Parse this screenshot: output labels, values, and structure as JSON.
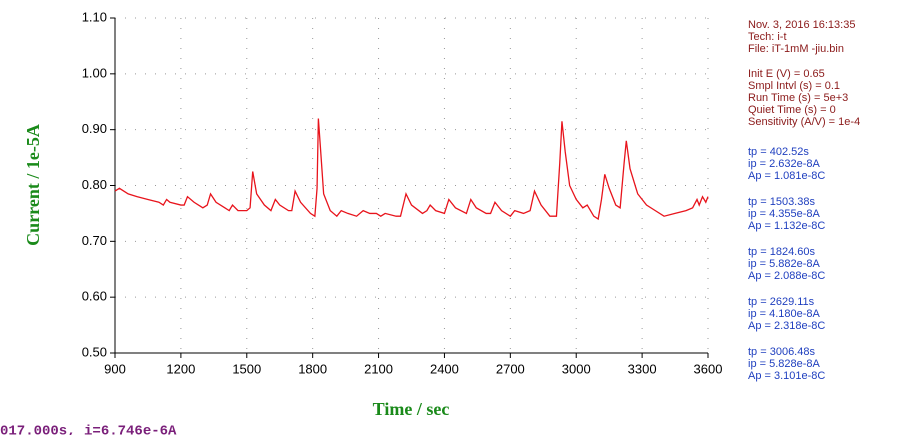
{
  "chart_data": {
    "type": "line",
    "xlabel": "Time / sec",
    "ylabel": "Current / 1e-5A",
    "x": [
      900,
      920,
      960,
      1000,
      1050,
      1100,
      1120,
      1135,
      1150,
      1200,
      1215,
      1230,
      1260,
      1300,
      1320,
      1335,
      1360,
      1400,
      1420,
      1435,
      1460,
      1500,
      1515,
      1527,
      1545,
      1580,
      1610,
      1630,
      1650,
      1690,
      1705,
      1720,
      1745,
      1790,
      1810,
      1820,
      1826,
      1835,
      1850,
      1880,
      1910,
      1930,
      1960,
      2000,
      2030,
      2060,
      2090,
      2110,
      2130,
      2180,
      2200,
      2225,
      2250,
      2300,
      2320,
      2335,
      2360,
      2400,
      2420,
      2450,
      2500,
      2520,
      2545,
      2590,
      2610,
      2630,
      2660,
      2700,
      2720,
      2760,
      2790,
      2810,
      2840,
      2880,
      2910,
      2925,
      2935,
      2950,
      2970,
      3000,
      3030,
      3050,
      3080,
      3100,
      3115,
      3130,
      3150,
      3180,
      3200,
      3218,
      3228,
      3245,
      3280,
      3320,
      3360,
      3400,
      3450,
      3500,
      3530,
      3550,
      3560,
      3575,
      3590,
      3600
    ],
    "values": [
      0.79,
      0.795,
      0.785,
      0.78,
      0.775,
      0.77,
      0.765,
      0.775,
      0.77,
      0.765,
      0.765,
      0.78,
      0.77,
      0.76,
      0.765,
      0.785,
      0.77,
      0.76,
      0.755,
      0.765,
      0.755,
      0.755,
      0.76,
      0.825,
      0.785,
      0.765,
      0.755,
      0.775,
      0.765,
      0.755,
      0.755,
      0.79,
      0.77,
      0.75,
      0.745,
      0.795,
      0.92,
      0.87,
      0.785,
      0.755,
      0.745,
      0.755,
      0.75,
      0.745,
      0.755,
      0.75,
      0.75,
      0.745,
      0.75,
      0.745,
      0.745,
      0.785,
      0.765,
      0.75,
      0.755,
      0.765,
      0.755,
      0.75,
      0.775,
      0.76,
      0.75,
      0.775,
      0.76,
      0.75,
      0.75,
      0.77,
      0.755,
      0.745,
      0.755,
      0.75,
      0.755,
      0.79,
      0.765,
      0.745,
      0.745,
      0.84,
      0.915,
      0.86,
      0.8,
      0.775,
      0.76,
      0.765,
      0.745,
      0.74,
      0.775,
      0.82,
      0.795,
      0.765,
      0.76,
      0.84,
      0.88,
      0.83,
      0.785,
      0.765,
      0.755,
      0.745,
      0.75,
      0.755,
      0.76,
      0.775,
      0.765,
      0.78,
      0.77,
      0.78
    ],
    "color": "#e8141c",
    "xlim": [
      900,
      3600
    ],
    "xticks": [
      900,
      1200,
      1500,
      1800,
      2100,
      2400,
      2700,
      3000,
      3300,
      3600
    ],
    "ylim": [
      0.5,
      1.1
    ],
    "yticks": [
      {
        "value": 0.5,
        "label": "0.50"
      },
      {
        "value": 0.6,
        "label": "0.60"
      },
      {
        "value": 0.7,
        "label": "0.70"
      },
      {
        "value": 0.8,
        "label": "0.80"
      },
      {
        "value": 0.9,
        "label": "0.90"
      },
      {
        "value": 1.0,
        "label": "1.00"
      },
      {
        "value": 1.1,
        "label": "1.10"
      }
    ],
    "grid": true,
    "info_color": "#8b1a1a",
    "peak_color": "#1f3fbf",
    "info": [
      [
        "Nov. 3, 2016   16:13:35",
        "Tech: i-t",
        "File: iT-1mM -jiu.bin"
      ],
      [
        "Init E (V) = 0.65",
        "Smpl Intvl (s) = 0.1",
        "Run Time (s) = 5e+3",
        "Quiet Time (s) = 0",
        "Sensitivity (A/V) = 1e-4"
      ]
    ],
    "peaks": [
      [
        "tp = 402.52s",
        "ip = 2.632e-8A",
        "Ap = 1.081e-8C"
      ],
      [
        "tp = 1503.38s",
        "ip = 4.355e-8A",
        "Ap = 1.132e-8C"
      ],
      [
        "tp = 1824.60s",
        "ip = 5.882e-8A",
        "Ap = 2.088e-8C"
      ],
      [
        "tp = 2629.11s",
        "ip = 4.180e-8A",
        "Ap = 2.318e-8C"
      ],
      [
        "tp = 3006.48s",
        "ip = 5.828e-8A",
        "Ap = 3.101e-8C"
      ]
    ]
  },
  "status_line": "017.000s, i=6.746e-6A"
}
